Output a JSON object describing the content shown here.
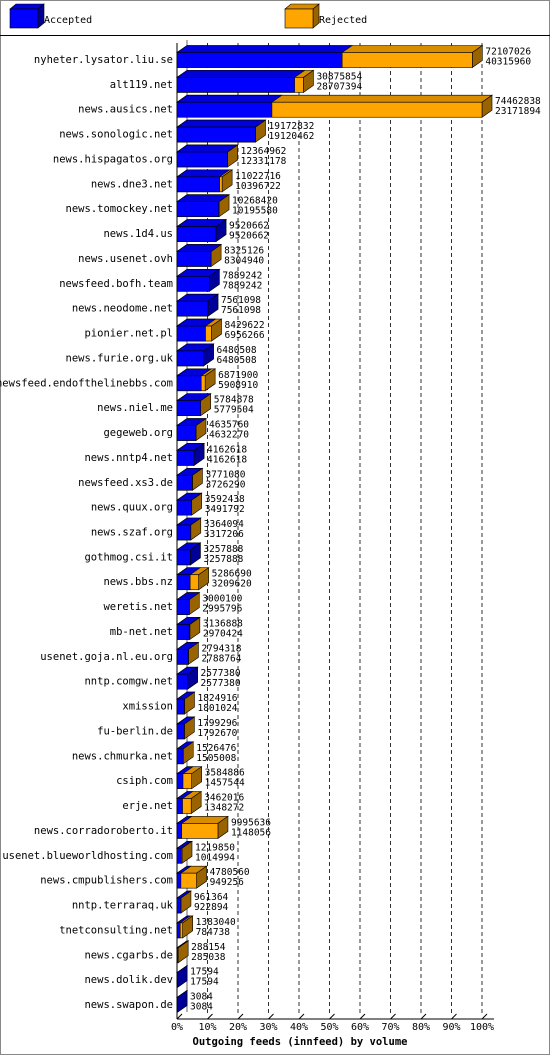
{
  "chart_data": {
    "type": "bar3d-overlay",
    "legend": [
      {
        "name": "Accepted",
        "color": "#0000ff"
      },
      {
        "name": "Rejected",
        "color": "#ffa500"
      }
    ],
    "xlabel": "Outgoing feeds (innfeed) by volume",
    "categories": [
      "nyheter.lysator.liu.se",
      "alt119.net",
      "news.ausics.net",
      "news.sonologic.net",
      "news.hispagatos.org",
      "news.dne3.net",
      "news.tomockey.net",
      "news.1d4.us",
      "news.usenet.ovh",
      "newsfeed.bofh.team",
      "news.neodome.net",
      "pionier.net.pl",
      "news.furie.org.uk",
      "newsfeed.endofthelinebbs.com",
      "news.niel.me",
      "gegeweb.org",
      "news.nntp4.net",
      "newsfeed.xs3.de",
      "news.quux.org",
      "news.szaf.org",
      "gothmog.csi.it",
      "news.bbs.nz",
      "weretis.net",
      "mb-net.net",
      "usenet.goja.nl.eu.org",
      "nntp.comgw.net",
      "xmission",
      "fu-berlin.de",
      "news.chmurka.net",
      "csiph.com",
      "erje.net",
      "news.corradoroberto.it",
      "usenet.blueworldhosting.com",
      "news.cmpublishers.com",
      "nntp.terraraq.uk",
      "tnetconsulting.net",
      "news.cgarbs.de",
      "news.dolik.dev",
      "news.swapon.de"
    ],
    "totals": [
      72107026,
      30875854,
      74462838,
      19172832,
      12364962,
      11022716,
      10268420,
      9520662,
      8325126,
      7889242,
      7561098,
      8429622,
      6480508,
      6871900,
      5784878,
      4635760,
      4162618,
      3771080,
      3592438,
      3364094,
      3257888,
      5286690,
      3000100,
      3136888,
      2794318,
      2577380,
      1824916,
      1799296,
      1526476,
      3584886,
      3462016,
      9995636,
      1219850,
      4780560,
      961364,
      1383040,
      288154,
      17594,
      3084
    ],
    "values": [
      40315960,
      28707394,
      23171894,
      19120462,
      12331178,
      10396722,
      10195580,
      9520662,
      8304940,
      7889242,
      7561098,
      6956266,
      6480508,
      5908910,
      5779504,
      4632270,
      4162618,
      3726290,
      3491792,
      3317206,
      3257888,
      3209620,
      2995796,
      2970424,
      2788764,
      2577380,
      1801024,
      1792670,
      1505008,
      1457544,
      1348272,
      1148056,
      1014994,
      949256,
      922894,
      784738,
      285038,
      17594,
      3084
    ],
    "xlim": [
      0,
      100
    ],
    "xticks": [
      {
        "value": 0,
        "label": "0%"
      },
      {
        "value": 10,
        "label": "10%"
      },
      {
        "value": 20,
        "label": "20%"
      },
      {
        "value": 30,
        "label": "30%"
      },
      {
        "value": 40,
        "label": "40%"
      },
      {
        "value": 50,
        "label": "50%"
      },
      {
        "value": 60,
        "label": "60%"
      },
      {
        "value": 70,
        "label": "70%"
      },
      {
        "value": 80,
        "label": "80%"
      },
      {
        "value": 90,
        "label": "90%"
      },
      {
        "value": 100,
        "label": "100%"
      }
    ],
    "grid": true
  }
}
